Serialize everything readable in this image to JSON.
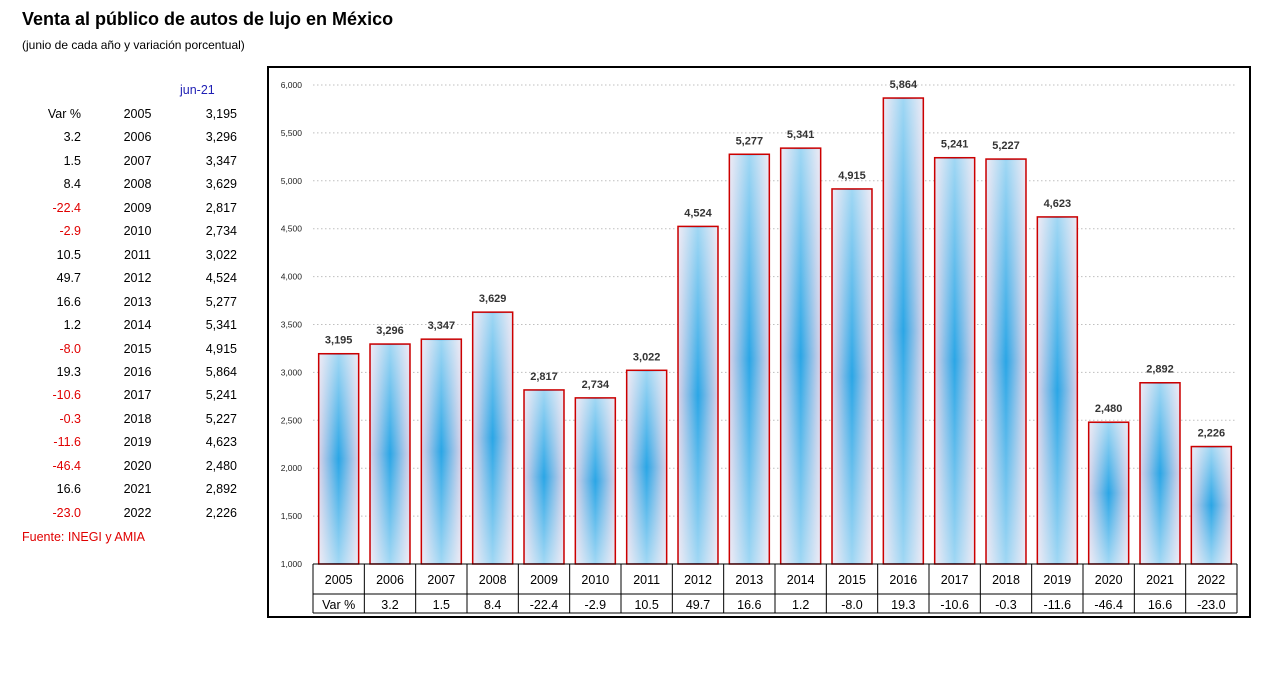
{
  "title": "Venta al público de autos de lujo en México",
  "subtitle": "(junio de cada año y variación porcentual)",
  "table": {
    "header": "jun-21",
    "rows": [
      {
        "var": "Var %",
        "year": "2005",
        "value": "3,195"
      },
      {
        "var": "3.2",
        "year": "2006",
        "value": "3,296"
      },
      {
        "var": "1.5",
        "year": "2007",
        "value": "3,347"
      },
      {
        "var": "8.4",
        "year": "2008",
        "value": "3,629"
      },
      {
        "var": "-22.4",
        "year": "2009",
        "value": "2,817"
      },
      {
        "var": "-2.9",
        "year": "2010",
        "value": "2,734"
      },
      {
        "var": "10.5",
        "year": "2011",
        "value": "3,022"
      },
      {
        "var": "49.7",
        "year": "2012",
        "value": "4,524"
      },
      {
        "var": "16.6",
        "year": "2013",
        "value": "5,277"
      },
      {
        "var": "1.2",
        "year": "2014",
        "value": "5,341"
      },
      {
        "var": "-8.0",
        "year": "2015",
        "value": "4,915"
      },
      {
        "var": "19.3",
        "year": "2016",
        "value": "5,864"
      },
      {
        "var": "-10.6",
        "year": "2017",
        "value": "5,241"
      },
      {
        "var": "-0.3",
        "year": "2018",
        "value": "5,227"
      },
      {
        "var": "-11.6",
        "year": "2019",
        "value": "4,623"
      },
      {
        "var": "-46.4",
        "year": "2020",
        "value": "2,480"
      },
      {
        "var": "16.6",
        "year": "2021",
        "value": "2,892"
      },
      {
        "var": "-23.0",
        "year": "2022",
        "value": "2,226"
      }
    ]
  },
  "source": "Fuente: INEGI y AMIA",
  "colors": {
    "bar_stroke": "#cc0000",
    "bar_light": "#dcd2e8",
    "bar_center": "#2aa6e6",
    "negative_text": "#e00000",
    "header_text": "#1f1fb4",
    "grid": "#bfbfbf"
  },
  "chart_data": {
    "type": "bar",
    "title": "",
    "xlabel": "",
    "ylabel": "",
    "categories": [
      "2005",
      "2006",
      "2007",
      "2008",
      "2009",
      "2010",
      "2011",
      "2012",
      "2013",
      "2014",
      "2015",
      "2016",
      "2017",
      "2018",
      "2019",
      "2020",
      "2021",
      "2022"
    ],
    "values": [
      3195,
      3296,
      3347,
      3629,
      2817,
      2734,
      3022,
      4524,
      5277,
      5341,
      4915,
      5864,
      5241,
      5227,
      4623,
      2480,
      2892,
      2226
    ],
    "value_labels": [
      "3,195",
      "3,296",
      "3,347",
      "3,629",
      "2,817",
      "2,734",
      "3,022",
      "4,524",
      "5,277",
      "5,341",
      "4,915",
      "5,864",
      "5,241",
      "5,227",
      "4,623",
      "2,480",
      "2,892",
      "2,226"
    ],
    "var_row_label": "Var %",
    "var_pct": [
      "3.2",
      "1.5",
      "8.4",
      "-22.4",
      "-2.9",
      "10.5",
      "49.7",
      "16.6",
      "1.2",
      "-8.0",
      "19.3",
      "-10.6",
      "-0.3",
      "-11.6",
      "-46.4",
      "16.6",
      "-23.0"
    ],
    "ylim": [
      1000,
      6000
    ],
    "yticks": [
      "1,000",
      "1,500",
      "2,000",
      "2,500",
      "3,000",
      "3,500",
      "4,000",
      "4,500",
      "5,000",
      "5,500",
      "6,000"
    ],
    "grid": true,
    "grid_style": "dotted-horizontal",
    "legend": "none"
  }
}
